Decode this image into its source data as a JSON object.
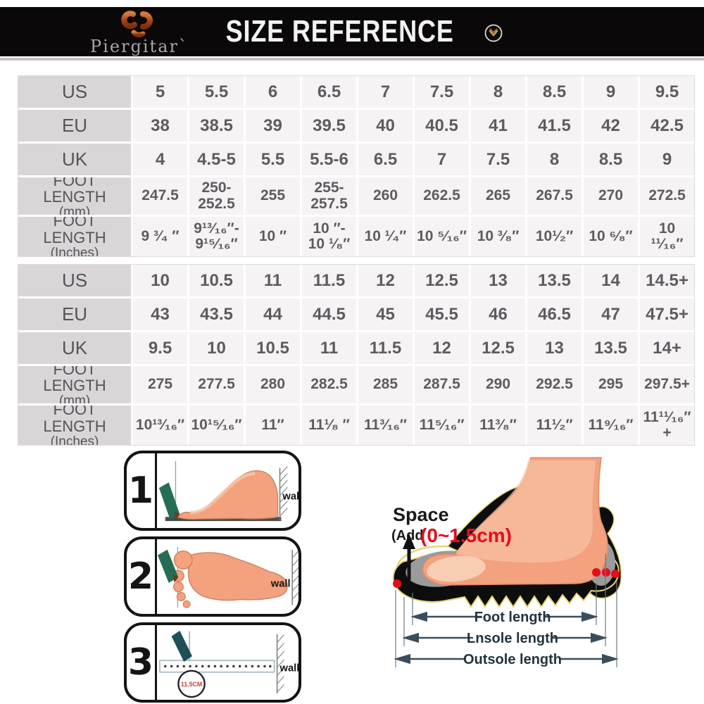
{
  "header": {
    "brand": "Piergitar`",
    "title": "SIZE REFERENCE",
    "chevron_icon": "chevron-down-circle",
    "brand_accent": "#b75b28",
    "bg": "#0b0809"
  },
  "colors": {
    "table_label_bg": "#dad6d7",
    "table_cell_bg": "#f6f3f4",
    "table_text": "#5d5b61",
    "red_accent": "#e60c1e",
    "marker_green": "#256e54",
    "dimension_line": "#3a4d5c",
    "foot_skin": "#f3a17e"
  },
  "tables": [
    {
      "rows": [
        {
          "label": "US",
          "sublabel": "",
          "values": [
            "5",
            "5.5",
            "6",
            "6.5",
            "7",
            "7.5",
            "8",
            "8.5",
            "9",
            "9.5"
          ]
        },
        {
          "label": "EU",
          "sublabel": "",
          "values": [
            "38",
            "38.5",
            "39",
            "39.5",
            "40",
            "40.5",
            "41",
            "41.5",
            "42",
            "42.5"
          ]
        },
        {
          "label": "UK",
          "sublabel": "",
          "values": [
            "4",
            "4.5-5",
            "5.5",
            "5.5-6",
            "6.5",
            "7",
            "7.5",
            "8",
            "8.5",
            "9"
          ]
        },
        {
          "label": "FOOT LENGTH",
          "sublabel": "(mm)",
          "values": [
            "247.5",
            "250- 252.5",
            "255",
            "255- 257.5",
            "260",
            "262.5",
            "265",
            "267.5",
            "270",
            "272.5"
          ]
        },
        {
          "label": "FOOT LENGTH",
          "sublabel": "(Inches)",
          "values": [
            "9 ³⁄₄ ″",
            "9¹³⁄₁₆″- 9¹⁵⁄₁₆″",
            "10 ″",
            "10 ″- 10 ¹⁄₈″",
            "10 ¹⁄₄″",
            "10 ⁵⁄₁₆″",
            "10 ³⁄₈″",
            "10¹⁄₂″",
            "10 ⁶⁄₈″",
            "10 ¹¹⁄₁₆″"
          ]
        }
      ]
    },
    {
      "rows": [
        {
          "label": "US",
          "sublabel": "",
          "values": [
            "10",
            "10.5",
            "11",
            "11.5",
            "12",
            "12.5",
            "13",
            "13.5",
            "14",
            "14.5+"
          ]
        },
        {
          "label": "EU",
          "sublabel": "",
          "values": [
            "43",
            "43.5",
            "44",
            "44.5",
            "45",
            "45.5",
            "46",
            "46.5",
            "47",
            "47.5+"
          ]
        },
        {
          "label": "UK",
          "sublabel": "",
          "values": [
            "9.5",
            "10",
            "10.5",
            "11",
            "11.5",
            "12",
            "12.5",
            "13",
            "13.5",
            "14+"
          ]
        },
        {
          "label": "FOOT LENGTH",
          "sublabel": "(mm)",
          "values": [
            "275",
            "277.5",
            "280",
            "282.5",
            "285",
            "287.5",
            "290",
            "292.5",
            "295",
            "297.5+"
          ]
        },
        {
          "label": "FOOT LENGTH",
          "sublabel": "(Inches)",
          "values": [
            "10¹³⁄₁₆″",
            "10¹⁵⁄₁₆″",
            "11″",
            "11¹⁄₈ ″",
            "11³⁄₁₆″",
            "11⁵⁄₁₆″",
            "11³⁄₈″",
            "11¹⁄₂″",
            "11⁹⁄₁₆″",
            "11¹¹⁄₁₆″+"
          ]
        }
      ]
    }
  ],
  "instructions": {
    "steps": [
      {
        "number": "1",
        "wall_label": "wall"
      },
      {
        "number": "2",
        "wall_label": "wall"
      },
      {
        "number": "3",
        "wall_label": "wall",
        "ruler_note": "11.5CM"
      }
    ]
  },
  "diagram": {
    "space_label": "Space",
    "add_label": "(Add",
    "range_label": "(0~1.5cm)",
    "foot_length_label": "Foot length",
    "insole_length_label": "Lnsole length",
    "outsole_length_label": "Outsole length"
  }
}
